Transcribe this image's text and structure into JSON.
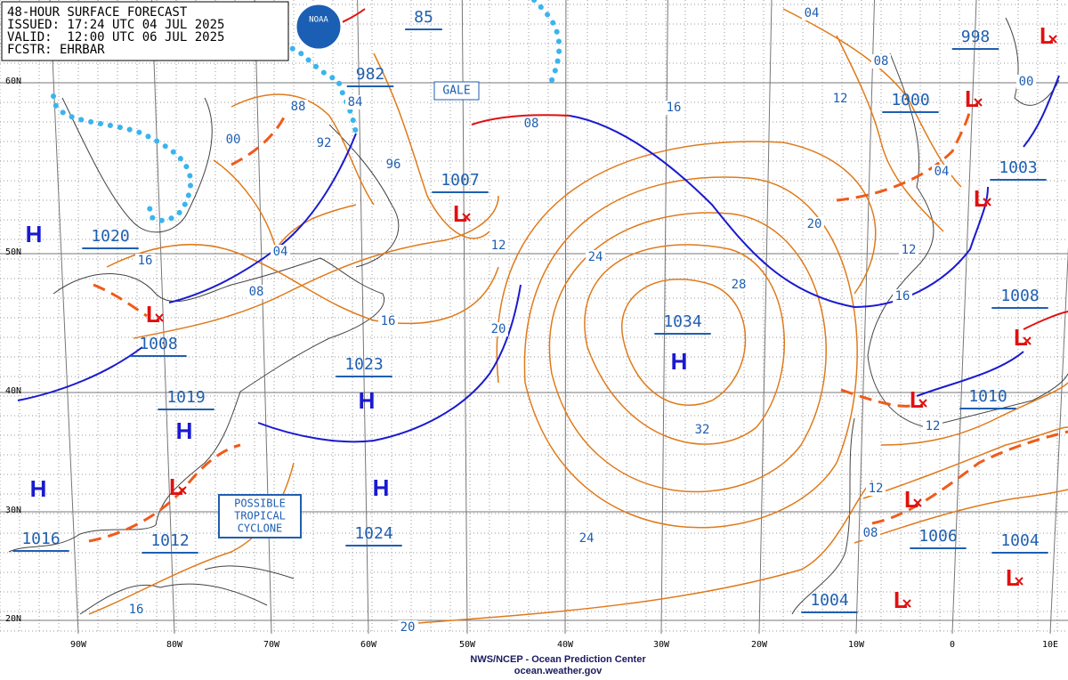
{
  "header": {
    "lines": [
      "48-HOUR SURFACE FORECAST",
      "ISSUED: 17:24 UTC 04 JUL 2025",
      "VALID:  12:00 UTC 06 JUL 2025",
      "FCSTR: EHRBAR"
    ],
    "logo": "NOAA"
  },
  "footer": {
    "agency": "NWS/NCEP - Ocean Prediction Center",
    "url": "ocean.weather.gov"
  },
  "latitude_labels": [
    "60N",
    "50N",
    "40N",
    "30N",
    "20N"
  ],
  "longitude_labels": [
    "90W",
    "80W",
    "70W",
    "60W",
    "50W",
    "40W",
    "30W",
    "20W",
    "10W",
    "0",
    "10E"
  ],
  "pressure_labels": [
    "1020",
    "1008",
    "1019",
    "1016",
    "1012",
    "1023",
    "1024",
    "1007",
    "982",
    "85",
    "1034",
    "1000",
    "998",
    "1003",
    "1008",
    "1010",
    "1006",
    "1004",
    "1004"
  ],
  "highs": [
    "H",
    "H",
    "H",
    "H",
    "H",
    "H"
  ],
  "lows": [
    "L",
    "L",
    "L",
    "L",
    "L",
    "L",
    "L",
    "L",
    "L",
    "L",
    "L"
  ],
  "isobar_labels": [
    "88",
    "84",
    "00",
    "92",
    "96",
    "04",
    "08",
    "16",
    "16",
    "12",
    "20",
    "08",
    "16",
    "24",
    "28",
    "32",
    "24",
    "20",
    "16",
    "04",
    "08",
    "12",
    "20",
    "04",
    "12",
    "16",
    "00",
    "12",
    "12",
    "08"
  ],
  "boxes": {
    "gale": "GALE",
    "tropical": [
      "POSSIBLE",
      "TROPICAL",
      "CYCLONE"
    ]
  }
}
